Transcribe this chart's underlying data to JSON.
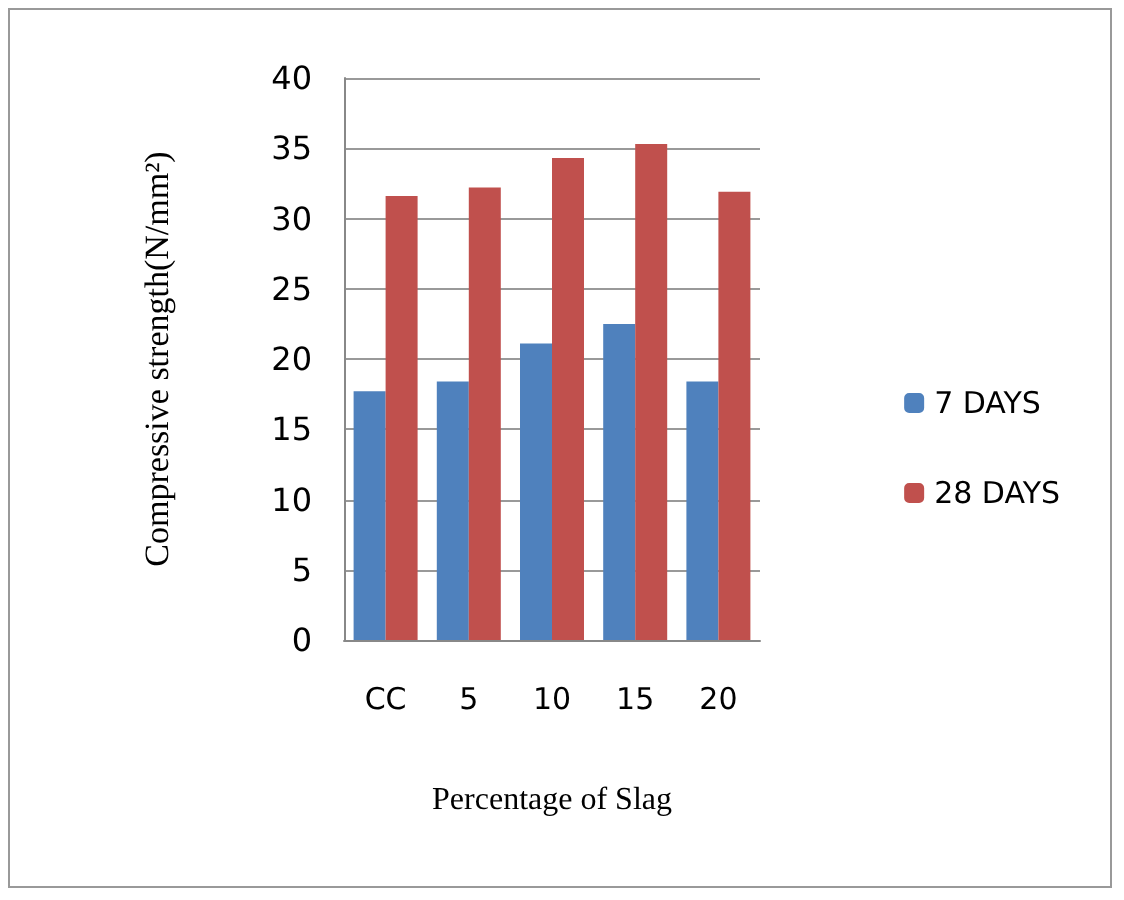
{
  "chart_data": {
    "type": "bar",
    "xlabel": "Percentage of Slag",
    "ylabel": "Compressive strength(N/mm²)",
    "categories": [
      "CC",
      "5",
      "10",
      "15",
      "20"
    ],
    "series": [
      {
        "name": "7 DAYS",
        "color": "#4f81bd",
        "values": [
          17.7,
          18.4,
          21.1,
          22.5,
          18.4
        ]
      },
      {
        "name": "28 DAYS",
        "color": "#c0504d",
        "values": [
          31.6,
          32.2,
          34.3,
          35.3,
          31.9
        ]
      }
    ],
    "ylim": [
      0,
      40
    ],
    "yticks": [
      0,
      5,
      10,
      15,
      20,
      25,
      30,
      35,
      40
    ],
    "grid": "y",
    "legend": "right"
  }
}
